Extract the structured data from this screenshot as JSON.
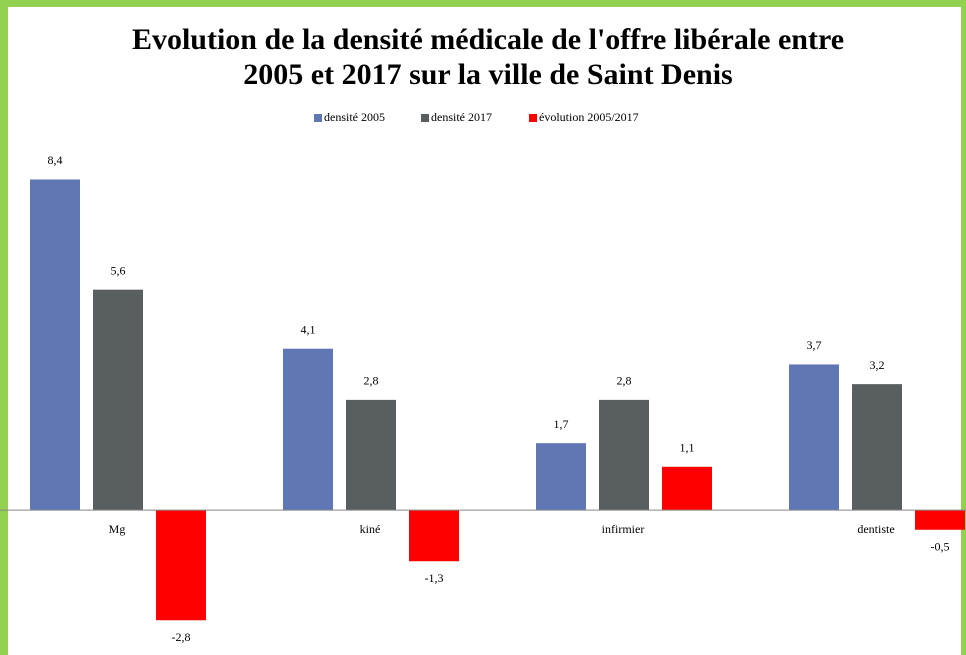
{
  "chart_data": {
    "type": "bar",
    "title": "Evolution de la densité médicale de l'offre libérale entre",
    "subtitle": "2005 et 2017 sur la ville de Saint Denis",
    "categories": [
      "Mg",
      "kiné",
      "infirmier",
      "dentiste"
    ],
    "series": [
      {
        "name": "densité 2005",
        "color": "#5f77b4",
        "values": [
          8.4,
          4.1,
          1.7,
          3.7
        ],
        "value_labels": [
          "8,4",
          "4,1",
          "1,7",
          "3,7"
        ]
      },
      {
        "name": "densité 2017",
        "color": "#595f60",
        "values": [
          5.6,
          2.8,
          2.8,
          3.2
        ],
        "value_labels": [
          "5,6",
          "2,8",
          "2,8",
          "3,2"
        ]
      },
      {
        "name": "évolution 2005/2017",
        "color": "#ff0000",
        "values": [
          -2.8,
          -1.3,
          1.1,
          -0.5
        ],
        "value_labels": [
          "-2,8",
          "-1,3",
          "1,1",
          "-0,5"
        ]
      }
    ],
    "ylim": [
      -3.2,
      9.2
    ],
    "legend": "top"
  }
}
